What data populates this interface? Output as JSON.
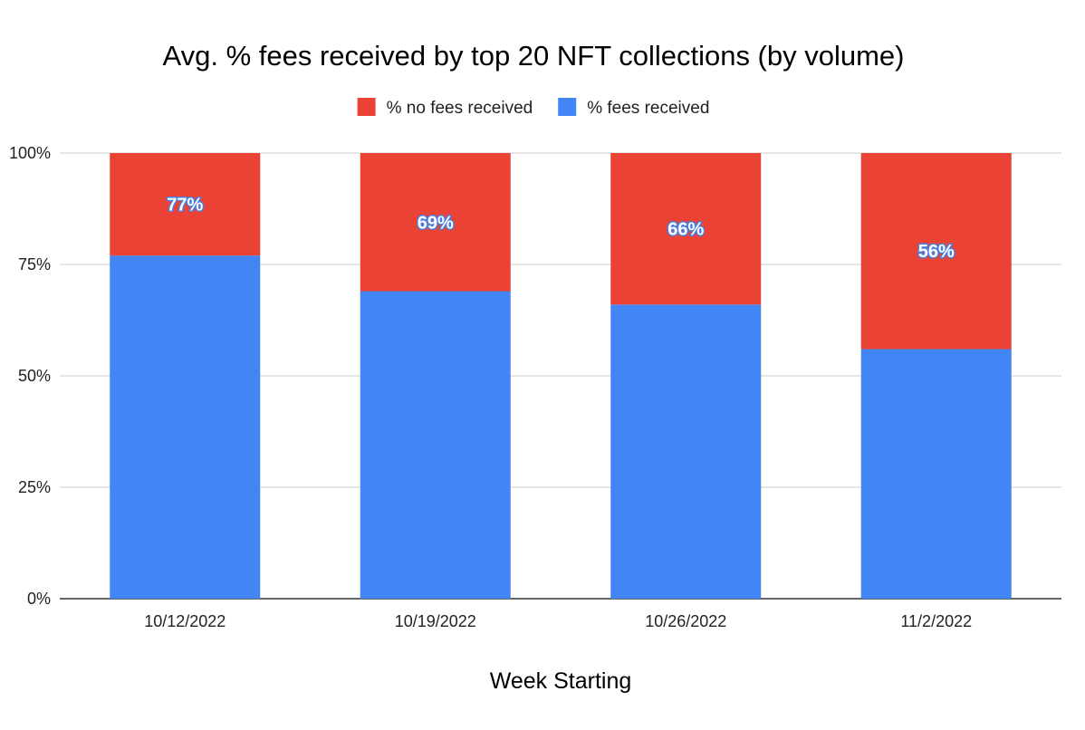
{
  "chart_data": {
    "type": "bar",
    "stacked": true,
    "normalized_percent": true,
    "title": "Avg. % fees received by top 20 NFT collections (by volume)",
    "xlabel": "Week Starting",
    "ylabel": "",
    "categories": [
      "10/12/2022",
      "10/19/2022",
      "10/26/2022",
      "11/2/2022"
    ],
    "series": [
      {
        "name": "% fees received",
        "color": "#4285f4",
        "values": [
          77,
          69,
          66,
          56
        ],
        "labels": [
          "77%",
          "69%",
          "66%",
          "56%"
        ]
      },
      {
        "name": "% no fees received",
        "color": "#ea4335",
        "values": [
          23,
          31,
          34,
          44
        ]
      }
    ],
    "ylim": [
      0,
      100
    ],
    "yticks": [
      {
        "value": 0,
        "label": "0%"
      },
      {
        "value": 25,
        "label": "25%"
      },
      {
        "value": 50,
        "label": "50%"
      },
      {
        "value": 75,
        "label": "75%"
      },
      {
        "value": 100,
        "label": "100%"
      }
    ],
    "legend": {
      "position": "top",
      "order": [
        "% no fees received",
        "% fees received"
      ]
    },
    "grid": true,
    "colors": {
      "gridline": "#cccccc",
      "baseline": "#333333"
    }
  }
}
